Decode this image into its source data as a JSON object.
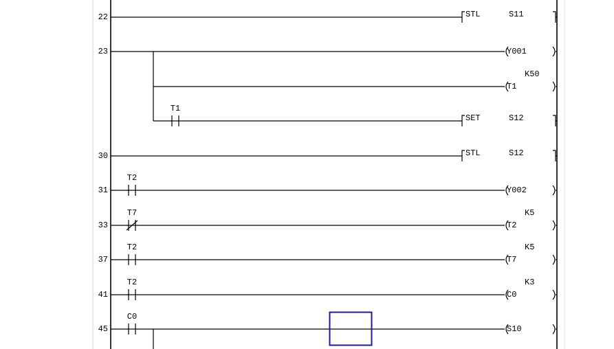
{
  "rungs": [
    {
      "step": "22",
      "contacts": [],
      "output": {
        "kind": "instr",
        "op": "STL",
        "arg": "S11"
      }
    },
    {
      "step": "23",
      "contacts": [],
      "output": {
        "kind": "coil",
        "op": "Y001",
        "arg": ""
      },
      "branches": [
        {
          "contacts": [],
          "output": {
            "kind": "coil",
            "op": "T1",
            "const": "K50"
          }
        },
        {
          "contacts": [
            {
              "type": "NO",
              "label": "T1"
            }
          ],
          "output": {
            "kind": "instr",
            "op": "SET",
            "arg": "S12"
          }
        }
      ]
    },
    {
      "step": "30",
      "contacts": [],
      "output": {
        "kind": "instr",
        "op": "STL",
        "arg": "S12"
      }
    },
    {
      "step": "31",
      "contacts": [
        {
          "type": "NO",
          "label": "T2"
        }
      ],
      "output": {
        "kind": "coil",
        "op": "Y002"
      }
    },
    {
      "step": "33",
      "contacts": [
        {
          "type": "NC",
          "label": "T7"
        }
      ],
      "output": {
        "kind": "coil",
        "op": "T2",
        "const": "K5"
      }
    },
    {
      "step": "37",
      "contacts": [
        {
          "type": "NO",
          "label": "T2"
        }
      ],
      "output": {
        "kind": "coil",
        "op": "T7",
        "const": "K5"
      }
    },
    {
      "step": "41",
      "contacts": [
        {
          "type": "NO",
          "label": "T2"
        }
      ],
      "output": {
        "kind": "coil",
        "op": "C0",
        "const": "K3"
      }
    },
    {
      "step": "45",
      "contacts": [
        {
          "type": "NO",
          "label": "C0"
        }
      ],
      "output": {
        "kind": "coil",
        "op": "S10"
      },
      "continues": true
    }
  ],
  "cursor_color": "#1a1aa0"
}
